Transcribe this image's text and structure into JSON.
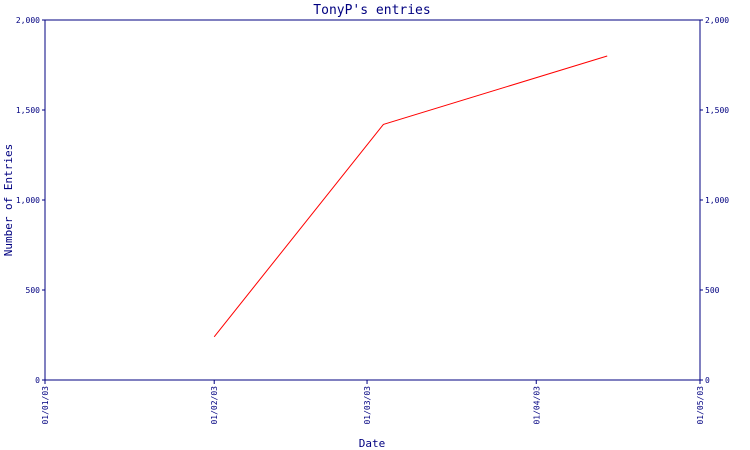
{
  "chart_data": {
    "type": "line",
    "title": "TonyP's entries",
    "xlabel": "Date",
    "ylabel": "Number of Entries",
    "x_ticks": [
      "01/01/03",
      "01/02/03",
      "01/03/03",
      "01/04/03",
      "01/05/03"
    ],
    "y_ticks": [
      "0",
      "500",
      "1,000",
      "1,500",
      "2,000"
    ],
    "right_y_ticks": [
      "0",
      "500",
      "1,000",
      "1,500",
      "2,000"
    ],
    "ylim": [
      0,
      2000
    ],
    "xlim": [
      "2003-01-01",
      "2003-05-01"
    ],
    "grid": false,
    "legend": "none",
    "series": [
      {
        "color": "#ff0000",
        "x": [
          "2003-02-01",
          "2003-03-04",
          "2003-04-14"
        ],
        "y": [
          240,
          1420,
          1800
        ]
      }
    ]
  }
}
